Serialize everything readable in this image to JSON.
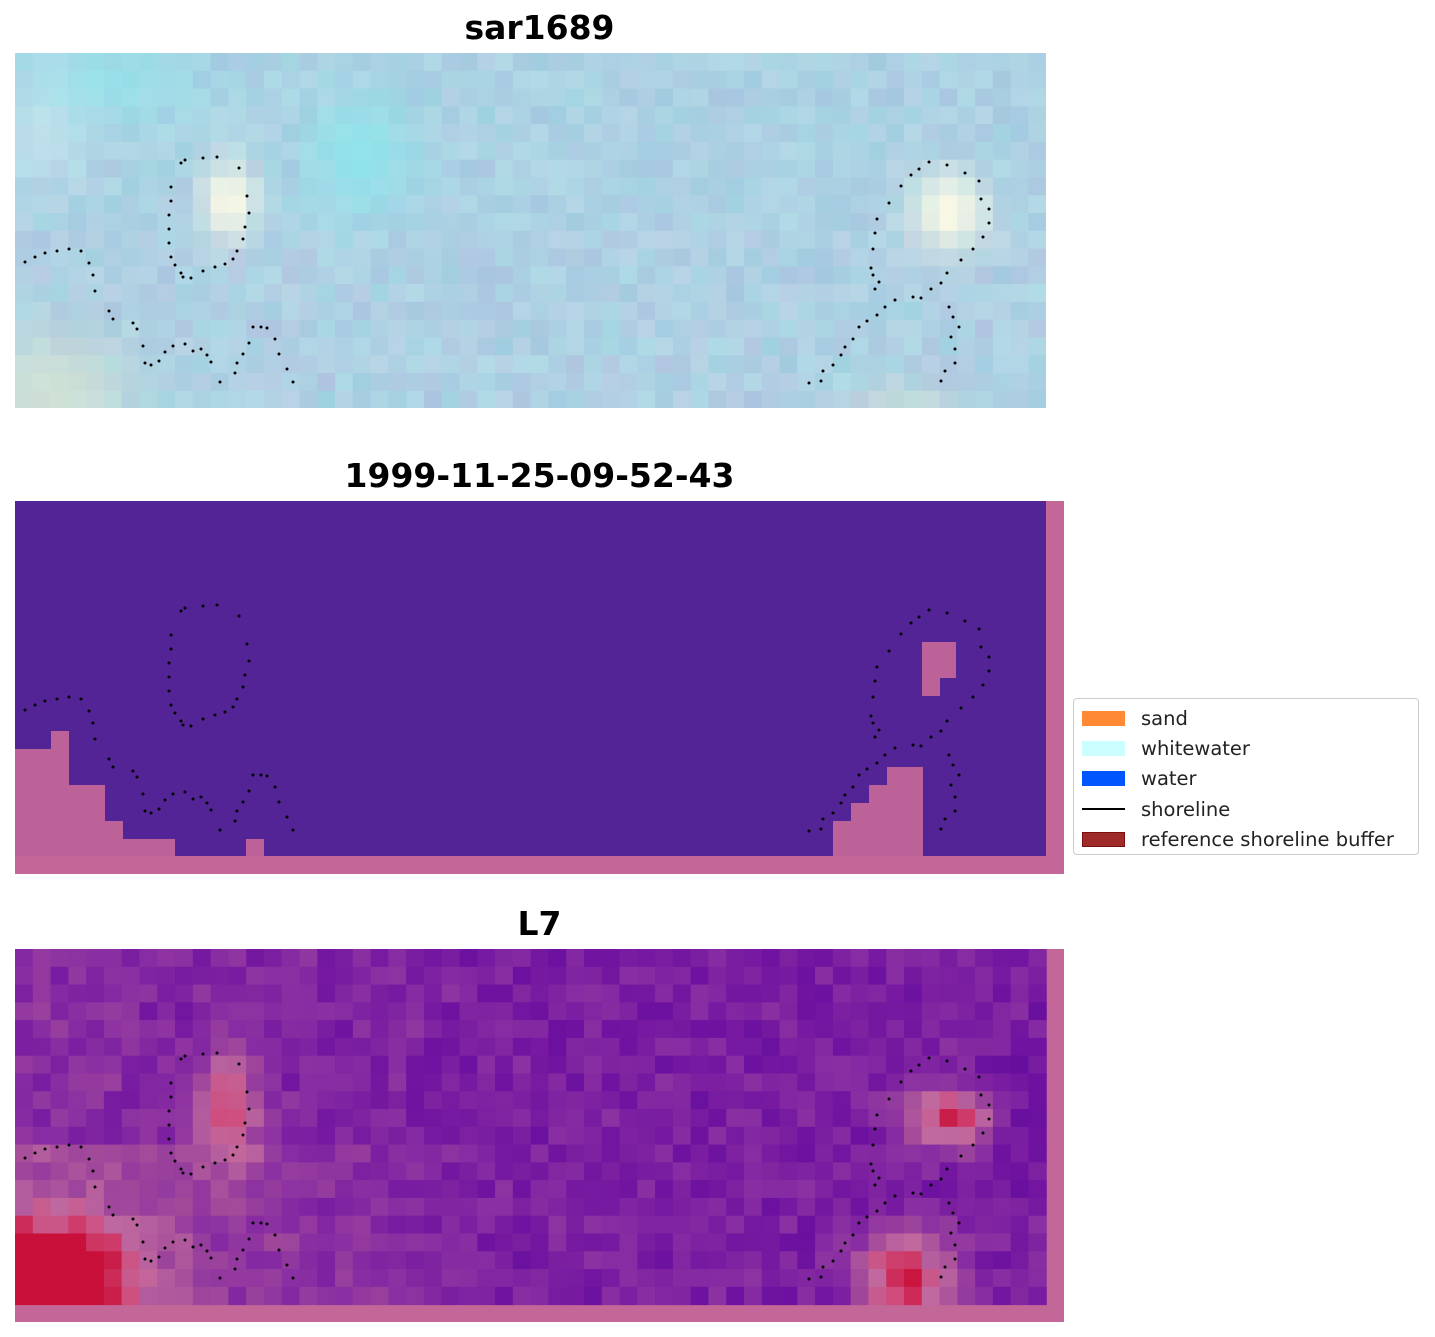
{
  "chart_data": [
    {
      "type": "heatmap",
      "title": "sar1689",
      "image_kind": "rgb-composite",
      "grid_cols": 58,
      "grid_rows": 20,
      "colors": [
        "#9dd3e0",
        "#cdeaf0",
        "#8ee6ec",
        "#a7bde0",
        "#c8b8de",
        "#d8e6d2",
        "#fffbe6"
      ]
    },
    {
      "type": "heatmap",
      "title": "1999-11-25-09-52-43",
      "image_kind": "classification",
      "colors": [
        "#532495",
        "#bd6298",
        "#c26798"
      ]
    },
    {
      "type": "heatmap",
      "title": "L7",
      "image_kind": "index-map",
      "colors": [
        "#5a0a9c",
        "#6f12a0",
        "#8a2fa2",
        "#a24a9a",
        "#c06aa0",
        "#d04a7a",
        "#c8103a"
      ]
    }
  ],
  "legend": {
    "placement": "right",
    "items": [
      {
        "label": "sand",
        "kind": "patch",
        "color": "#ff8a33"
      },
      {
        "label": "whitewater",
        "kind": "patch",
        "color": "#ccfdff"
      },
      {
        "label": "water",
        "kind": "patch",
        "color": "#0055ff"
      },
      {
        "label": "shoreline",
        "kind": "line",
        "color": "#000000"
      },
      {
        "label": "reference shoreline buffer",
        "kind": "patch",
        "color": "#9e2a2a",
        "edge": "#7a1010"
      }
    ]
  },
  "shoreline": {
    "style": "dotted",
    "color": "#000000"
  }
}
